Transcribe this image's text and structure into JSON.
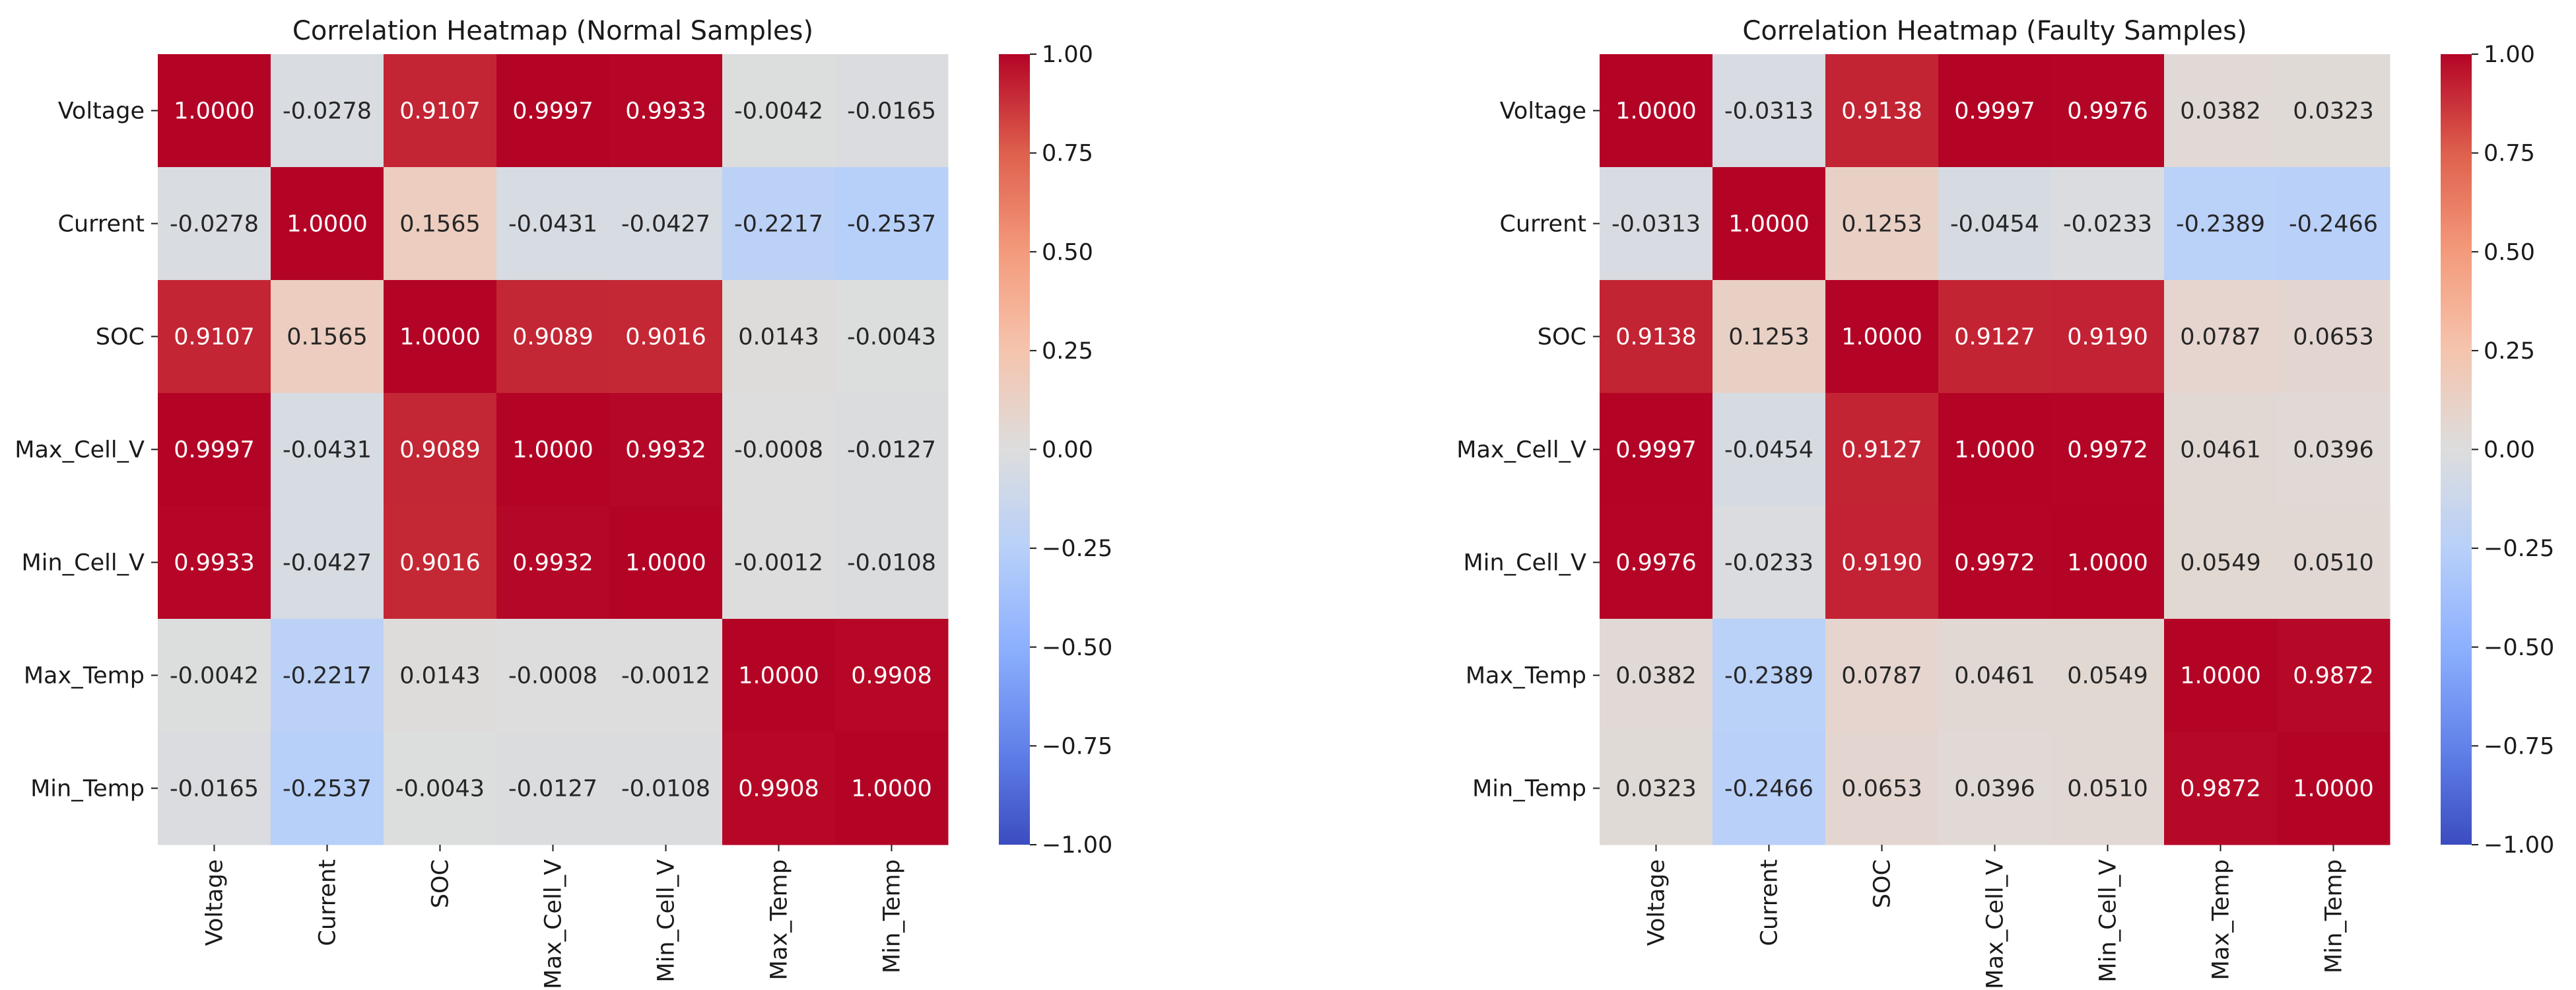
{
  "chart_data": [
    {
      "type": "heatmap",
      "title": "Correlation Heatmap (Normal Samples)",
      "row_labels": [
        "Voltage",
        "Current",
        "SOC",
        "Max_Cell_V",
        "Min_Cell_V",
        "Max_Temp",
        "Min_Temp"
      ],
      "col_labels": [
        "Voltage",
        "Current",
        "SOC",
        "Max_Cell_V",
        "Min_Cell_V",
        "Max_Temp",
        "Min_Temp"
      ],
      "values": [
        [
          1.0,
          -0.0278,
          0.9107,
          0.9997,
          0.9933,
          -0.0042,
          -0.0165
        ],
        [
          -0.0278,
          1.0,
          0.1565,
          -0.0431,
          -0.0427,
          -0.2217,
          -0.2537
        ],
        [
          0.9107,
          0.1565,
          1.0,
          0.9089,
          0.9016,
          0.0143,
          -0.0043
        ],
        [
          0.9997,
          -0.0431,
          0.9089,
          1.0,
          0.9932,
          -0.0008,
          -0.0127
        ],
        [
          0.9933,
          -0.0427,
          0.9016,
          0.9932,
          1.0,
          -0.0012,
          -0.0108
        ],
        [
          -0.0042,
          -0.2217,
          0.0143,
          -0.0008,
          -0.0012,
          1.0,
          0.9908
        ],
        [
          -0.0165,
          -0.2537,
          -0.0043,
          -0.0127,
          -0.0108,
          0.9908,
          1.0
        ]
      ],
      "value_format": "fixed4",
      "colormap": "coolwarm",
      "vmin": -1.0,
      "vmax": 1.0,
      "colorbar_ticks": [
        "1.00",
        "0.75",
        "0.50",
        "0.25",
        "0.00",
        "−0.25",
        "−0.50",
        "−0.75",
        "−1.00"
      ],
      "colorbar_tick_values": [
        1.0,
        0.75,
        0.5,
        0.25,
        0.0,
        -0.25,
        -0.5,
        -0.75,
        -1.0
      ]
    },
    {
      "type": "heatmap",
      "title": "Correlation Heatmap (Faulty Samples)",
      "row_labels": [
        "Voltage",
        "Current",
        "SOC",
        "Max_Cell_V",
        "Min_Cell_V",
        "Max_Temp",
        "Min_Temp"
      ],
      "col_labels": [
        "Voltage",
        "Current",
        "SOC",
        "Max_Cell_V",
        "Min_Cell_V",
        "Max_Temp",
        "Min_Temp"
      ],
      "values": [
        [
          1.0,
          -0.0313,
          0.9138,
          0.9997,
          0.9976,
          0.0382,
          0.0323
        ],
        [
          -0.0313,
          1.0,
          0.1253,
          -0.0454,
          -0.0233,
          -0.2389,
          -0.2466
        ],
        [
          0.9138,
          0.1253,
          1.0,
          0.9127,
          0.919,
          0.0787,
          0.0653
        ],
        [
          0.9997,
          -0.0454,
          0.9127,
          1.0,
          0.9972,
          0.0461,
          0.0396
        ],
        [
          0.9976,
          -0.0233,
          0.919,
          0.9972,
          1.0,
          0.0549,
          0.051
        ],
        [
          0.0382,
          -0.2389,
          0.0787,
          0.0461,
          0.0549,
          1.0,
          0.9872
        ],
        [
          0.0323,
          -0.2466,
          0.0653,
          0.0396,
          0.051,
          0.9872,
          1.0
        ]
      ],
      "value_format": "fixed4",
      "colormap": "coolwarm",
      "vmin": -1.0,
      "vmax": 1.0,
      "colorbar_ticks": [
        "1.00",
        "0.75",
        "0.50",
        "0.25",
        "0.00",
        "−0.25",
        "−0.50",
        "−0.75",
        "−1.00"
      ],
      "colorbar_tick_values": [
        1.0,
        0.75,
        0.5,
        0.25,
        0.0,
        -0.25,
        -0.5,
        -0.75,
        -1.0
      ]
    }
  ],
  "colors": {
    "low": "#3b4cc0",
    "mid": "#dddddd",
    "high": "#b40426",
    "text_dark": "#262626",
    "text_light": "#ffffff"
  }
}
